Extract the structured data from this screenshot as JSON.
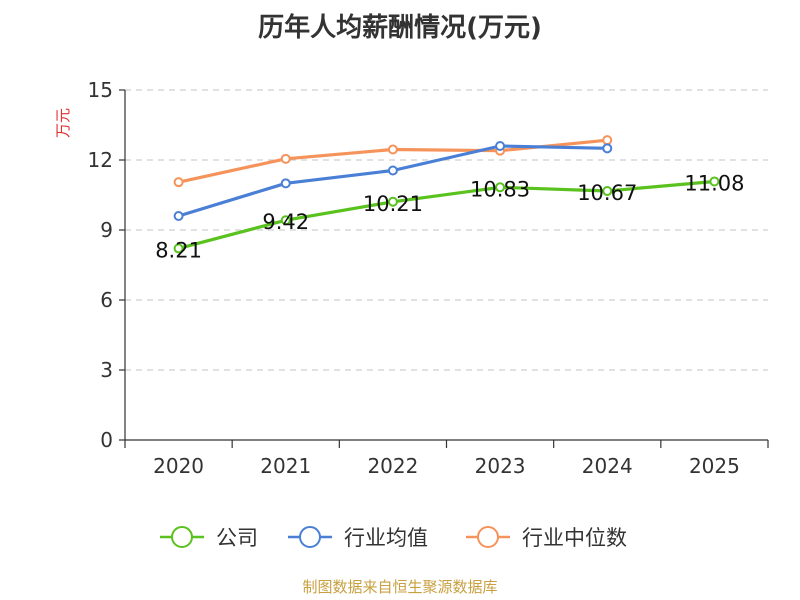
{
  "chart_data": {
    "type": "line",
    "title": "历年人均薪酬情况(万元)",
    "ylabel": "万元",
    "xlabel": "",
    "categories": [
      "2020",
      "2021",
      "2022",
      "2023",
      "2024",
      "2025"
    ],
    "ylim": [
      0,
      15
    ],
    "yticks": [
      0,
      3,
      6,
      9,
      12,
      15
    ],
    "grid": true,
    "legend_position": "bottom",
    "series": [
      {
        "name": "公司",
        "color": "#5ac21e",
        "values": [
          8.21,
          9.42,
          10.21,
          10.83,
          10.67,
          11.08
        ],
        "labels": [
          "8.21",
          "9.42",
          "10.21",
          "10.83",
          "10.67",
          "11.08"
        ]
      },
      {
        "name": "行业均值",
        "color": "#4a7fd6",
        "values": [
          9.6,
          11.0,
          11.55,
          12.6,
          12.5,
          null
        ]
      },
      {
        "name": "行业中位数",
        "color": "#f5935a",
        "values": [
          11.05,
          12.05,
          12.45,
          12.4,
          12.85,
          null
        ]
      }
    ]
  },
  "footer": {
    "source": "制图数据来自恒生聚源数据库"
  }
}
